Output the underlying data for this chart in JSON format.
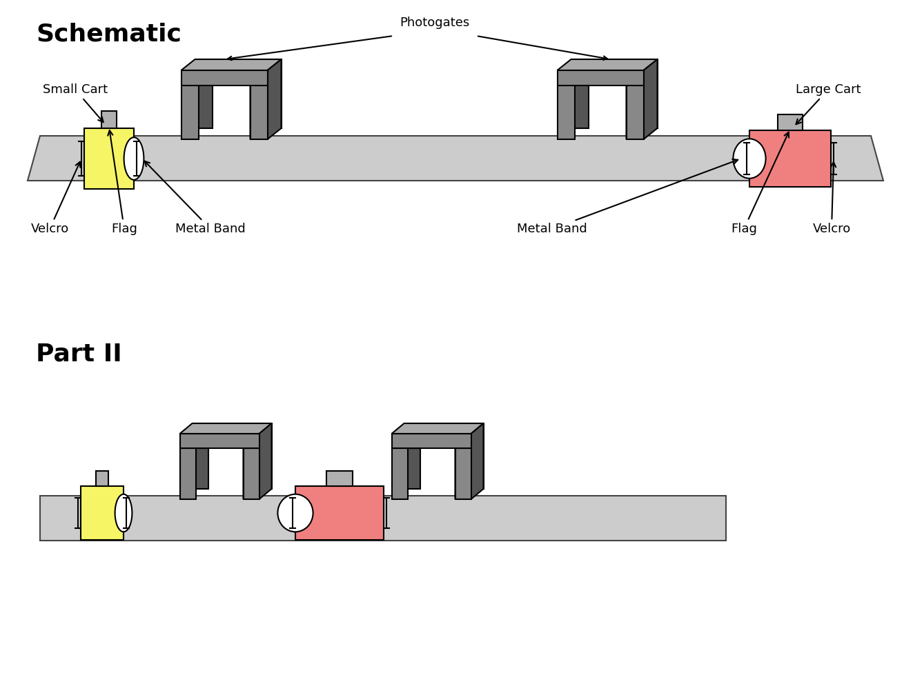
{
  "bg_color": "#ffffff",
  "track_color_light": "#cccccc",
  "track_color_dark": "#bbbbbb",
  "small_cart_color": "#f5f566",
  "large_cart_color": "#f08080",
  "flag_color": "#b0b0b0",
  "gate_front": "#888888",
  "gate_side": "#555555",
  "gate_top": "#aaaaaa",
  "schematic_title": "Schematic",
  "partii_title": "Part II",
  "photogates_label": "Photogates",
  "small_cart_label": "Small Cart",
  "large_cart_label": "Large Cart",
  "velcro_left_label": "Velcro",
  "flag_left_label": "Flag",
  "metalband_left_label": "Metal Band",
  "metalband_right_label": "Metal Band",
  "flag_right_label": "Flag",
  "velcro_right_label": "Velcro",
  "lw": 1.5,
  "ann_fs": 13
}
